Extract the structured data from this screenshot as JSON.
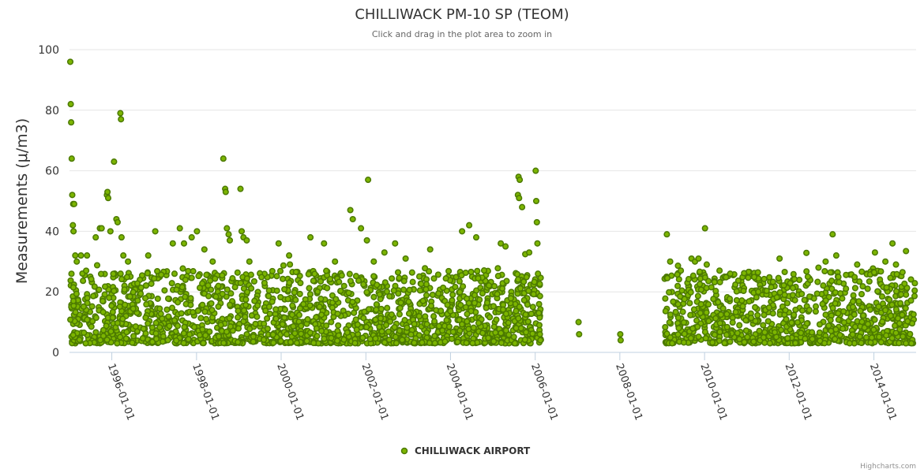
{
  "chart_data": {
    "type": "scatter",
    "title": "CHILLIWACK PM-10 SP (TEOM)",
    "subtitle": "Click and drag in the plot area to zoom in",
    "xlabel": "",
    "ylabel": "Measurements (μ/m3)",
    "x_axis_type": "datetime",
    "xlim": [
      "1995-01-01",
      "2014-12-31"
    ],
    "ylim": [
      0,
      100
    ],
    "yticks": [
      0,
      20,
      40,
      60,
      80,
      100
    ],
    "xticks": [
      "1996-01-01",
      "1998-01-01",
      "2000-01-01",
      "2002-01-01",
      "2004-01-01",
      "2006-01-01",
      "2008-01-01",
      "2010-01-01",
      "2012-01-01",
      "2014-01-01"
    ],
    "grid": true,
    "legend_position": "bottom-center",
    "colors": {
      "marker_fill": "#7cb500",
      "marker_stroke": "#4c7a00"
    },
    "series": [
      {
        "name": "CHILLIWACK AIRPORT",
        "points": [
          [
            "1995-01-08",
            96
          ],
          [
            "1995-01-12",
            82
          ],
          [
            "1995-01-15",
            76
          ],
          [
            "1995-01-20",
            64
          ],
          [
            "1995-01-25",
            52
          ],
          [
            "1995-02-02",
            49
          ],
          [
            "1995-02-10",
            49
          ],
          [
            "1995-01-30",
            42
          ],
          [
            "1995-02-05",
            40
          ],
          [
            "1995-02-20",
            32
          ],
          [
            "1995-03-05",
            30
          ],
          [
            "1995-04-10",
            32
          ],
          [
            "1995-06-01",
            32
          ],
          [
            "1995-08-15",
            38
          ],
          [
            "1995-09-20",
            41
          ],
          [
            "1995-10-05",
            41
          ],
          [
            "1995-11-20",
            52
          ],
          [
            "1995-11-25",
            53
          ],
          [
            "1995-12-01",
            51
          ],
          [
            "1995-12-20",
            40
          ],
          [
            "1996-01-20",
            63
          ],
          [
            "1996-02-10",
            44
          ],
          [
            "1996-02-20",
            43
          ],
          [
            "1996-03-15",
            79
          ],
          [
            "1996-03-20",
            77
          ],
          [
            "1996-03-25",
            38
          ],
          [
            "1996-04-10",
            32
          ],
          [
            "1996-05-20",
            30
          ],
          [
            "1996-11-10",
            32
          ],
          [
            "1997-01-10",
            40
          ],
          [
            "1997-06-10",
            36
          ],
          [
            "1997-08-10",
            41
          ],
          [
            "1997-09-15",
            36
          ],
          [
            "1997-11-20",
            38
          ],
          [
            "1998-01-05",
            40
          ],
          [
            "1998-03-10",
            34
          ],
          [
            "1998-05-20",
            30
          ],
          [
            "1998-08-20",
            64
          ],
          [
            "1998-09-05",
            54
          ],
          [
            "1998-09-10",
            53
          ],
          [
            "1998-09-20",
            41
          ],
          [
            "1998-10-05",
            39
          ],
          [
            "1998-10-15",
            37
          ],
          [
            "1999-01-15",
            54
          ],
          [
            "1999-01-25",
            40
          ],
          [
            "1999-02-10",
            38
          ],
          [
            "1999-03-10",
            37
          ],
          [
            "1999-12-10",
            36
          ],
          [
            "2000-03-10",
            32
          ],
          [
            "2000-09-10",
            38
          ],
          [
            "2001-01-05",
            36
          ],
          [
            "2001-04-10",
            30
          ],
          [
            "2001-08-20",
            47
          ],
          [
            "2001-09-10",
            44
          ],
          [
            "2001-11-20",
            41
          ],
          [
            "2002-01-20",
            57
          ],
          [
            "2002-01-10",
            37
          ],
          [
            "2002-03-10",
            30
          ],
          [
            "2002-06-10",
            33
          ],
          [
            "2002-09-10",
            36
          ],
          [
            "2002-12-10",
            31
          ],
          [
            "2003-07-10",
            34
          ],
          [
            "2004-04-10",
            40
          ],
          [
            "2004-06-10",
            42
          ],
          [
            "2004-08-10",
            38
          ],
          [
            "2005-03-10",
            36
          ],
          [
            "2005-04-20",
            35
          ],
          [
            "2005-08-10",
            58
          ],
          [
            "2005-08-20",
            57
          ],
          [
            "2005-08-05",
            52
          ],
          [
            "2005-08-15",
            51
          ],
          [
            "2005-09-10",
            48
          ],
          [
            "2005-11-10",
            33
          ],
          [
            "2006-01-05",
            60
          ],
          [
            "2006-01-10",
            50
          ],
          [
            "2006-01-15",
            43
          ],
          [
            "2006-01-20",
            36
          ],
          [
            "2006-01-25",
            26
          ],
          [
            "2006-02-01",
            13
          ],
          [
            "2006-02-05",
            9
          ],
          [
            "2006-02-10",
            6
          ],
          [
            "2006-02-15",
            4
          ],
          [
            "2007-01-10",
            10
          ],
          [
            "2007-01-15",
            6
          ],
          [
            "2008-01-05",
            6
          ],
          [
            "2008-01-08",
            4
          ],
          [
            "2009-02-10",
            39
          ],
          [
            "2009-03-10",
            30
          ],
          [
            "2009-06-10",
            27
          ],
          [
            "2009-09-10",
            31
          ],
          [
            "2009-10-10",
            30
          ],
          [
            "2009-11-10",
            31
          ],
          [
            "2010-01-05",
            41
          ],
          [
            "2010-01-20",
            29
          ],
          [
            "2010-05-10",
            27
          ],
          [
            "2010-08-10",
            26
          ],
          [
            "2011-04-10",
            20
          ],
          [
            "2011-10-10",
            31
          ],
          [
            "2012-06-10",
            25
          ],
          [
            "2012-09-10",
            28
          ],
          [
            "2012-11-10",
            30
          ],
          [
            "2013-01-10",
            39
          ],
          [
            "2013-02-10",
            32
          ],
          [
            "2013-08-10",
            29
          ],
          [
            "2014-01-10",
            33
          ],
          [
            "2014-04-10",
            30
          ],
          [
            "2014-06-10",
            36
          ],
          [
            "2014-07-10",
            29
          ]
        ]
      }
    ]
  },
  "credits": "Highcharts.com"
}
